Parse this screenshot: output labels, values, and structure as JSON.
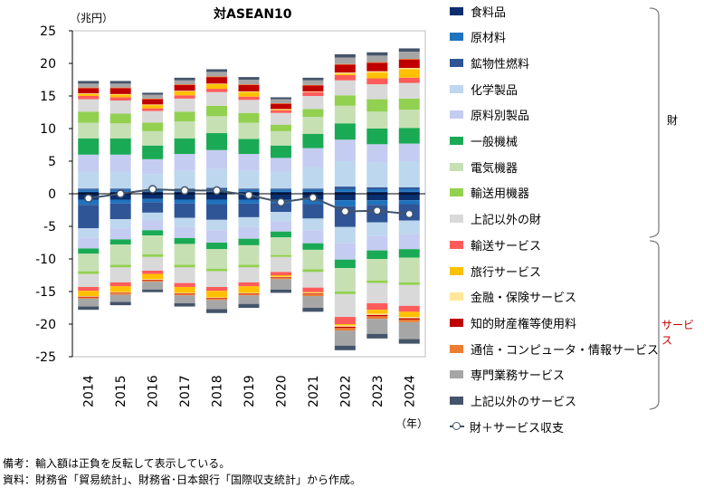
{
  "chart_data": {
    "type": "bar",
    "subtype": "stacked-bar-with-line",
    "title": "対ASEAN10",
    "ylabel_unit": "（兆円）",
    "xlabel_unit": "（年）",
    "ylim": [
      -25,
      25
    ],
    "yticks": [
      25,
      20,
      15,
      10,
      5,
      0,
      -5,
      -10,
      -15,
      -20,
      -25
    ],
    "categories": [
      "2014",
      "2015",
      "2016",
      "2017",
      "2018",
      "2019",
      "2020",
      "2021",
      "2022",
      "2023",
      "2024"
    ],
    "goods_series": [
      {
        "name": "食料品",
        "color": "#0B2E6E",
        "exports": [
          0.3,
          0.3,
          0.3,
          0.3,
          0.3,
          0.3,
          0.3,
          0.3,
          0.3,
          0.3,
          0.3
        ],
        "imports": [
          -0.9,
          -0.9,
          -0.8,
          -0.9,
          -0.9,
          -0.9,
          -0.9,
          -0.9,
          -1.0,
          -1.0,
          -1.0
        ]
      },
      {
        "name": "原材料",
        "color": "#1E73BE",
        "exports": [
          0.3,
          0.3,
          0.2,
          0.3,
          0.3,
          0.3,
          0.3,
          0.3,
          0.4,
          0.4,
          0.4
        ],
        "imports": [
          -0.8,
          -0.6,
          -0.5,
          -0.6,
          -0.7,
          -0.6,
          -0.5,
          -0.7,
          -0.9,
          -0.7,
          -0.6
        ]
      },
      {
        "name": "鉱物性燃料",
        "color": "#2F5597",
        "exports": [
          0.2,
          0.2,
          0.1,
          0.2,
          0.3,
          0.2,
          0.2,
          0.2,
          0.4,
          0.3,
          0.3
        ],
        "imports": [
          -3.6,
          -2.4,
          -1.6,
          -2.2,
          -2.4,
          -2.1,
          -1.4,
          -2.2,
          -3.2,
          -2.7,
          -2.5
        ]
      },
      {
        "name": "化学製品",
        "color": "#BDD7EE",
        "exports": [
          2.6,
          2.6,
          2.4,
          2.7,
          2.9,
          2.7,
          2.6,
          3.3,
          3.9,
          3.8,
          4.0
        ],
        "imports": [
          -1.4,
          -1.4,
          -1.2,
          -1.4,
          -1.6,
          -1.5,
          -1.4,
          -1.8,
          -2.5,
          -2.1,
          -2.1
        ]
      },
      {
        "name": "原料別製品",
        "color": "#C5CCF2",
        "exports": [
          2.6,
          2.6,
          2.3,
          2.6,
          2.9,
          2.6,
          2.1,
          2.9,
          3.3,
          2.8,
          2.7
        ],
        "imports": [
          -1.7,
          -1.7,
          -1.5,
          -1.7,
          -1.9,
          -1.8,
          -1.6,
          -2.0,
          -2.5,
          -2.2,
          -2.3
        ]
      },
      {
        "name": "一般機械",
        "color": "#1AAA55",
        "exports": [
          2.5,
          2.5,
          2.1,
          2.4,
          2.6,
          2.3,
          1.9,
          2.2,
          2.5,
          2.4,
          2.4
        ],
        "imports": [
          -0.8,
          -0.8,
          -0.8,
          -0.9,
          -1.0,
          -1.0,
          -0.9,
          -1.0,
          -1.3,
          -1.3,
          -1.3
        ]
      },
      {
        "name": "電気機器",
        "color": "#C6E0B4",
        "exports": [
          2.4,
          2.3,
          2.2,
          2.6,
          2.6,
          2.5,
          2.2,
          2.6,
          2.7,
          2.6,
          2.8
        ],
        "imports": [
          -2.7,
          -3.1,
          -2.9,
          -3.2,
          -3.0,
          -3.0,
          -2.7,
          -3.0,
          -3.6,
          -3.3,
          -3.8
        ]
      },
      {
        "name": "輸送用機器",
        "color": "#92D050",
        "exports": [
          1.7,
          1.5,
          1.3,
          1.5,
          1.6,
          1.5,
          1.0,
          1.2,
          1.6,
          1.9,
          1.7
        ],
        "imports": [
          -0.4,
          -0.4,
          -0.4,
          -0.4,
          -0.4,
          -0.4,
          -0.3,
          -0.4,
          -0.4,
          -0.4,
          -0.4
        ]
      },
      {
        "name": "上記以外の財",
        "color": "#D9D9D9",
        "exports": [
          1.9,
          2.0,
          1.8,
          2.0,
          2.1,
          2.0,
          1.8,
          2.0,
          2.3,
          2.3,
          2.4
        ],
        "imports": [
          -2.0,
          -2.3,
          -2.1,
          -2.4,
          -2.4,
          -2.3,
          -2.3,
          -2.4,
          -3.5,
          -3.1,
          -3.2
        ]
      }
    ],
    "services_series": [
      {
        "name": "輸送サービス",
        "color": "#FF5B5B",
        "exports": [
          0.5,
          0.5,
          0.4,
          0.5,
          0.5,
          0.5,
          0.4,
          0.6,
          0.8,
          0.9,
          0.8
        ],
        "imports": [
          -0.6,
          -0.6,
          -0.5,
          -0.6,
          -0.6,
          -0.6,
          -0.5,
          -0.7,
          -1.1,
          -1.0,
          -0.9
        ]
      },
      {
        "name": "旅行サービス",
        "color": "#FFC000",
        "exports": [
          0.3,
          0.4,
          0.5,
          0.6,
          0.7,
          0.7,
          0.1,
          0.0,
          0.2,
          0.9,
          1.3
        ],
        "imports": [
          -0.8,
          -0.9,
          -0.8,
          -0.9,
          -1.0,
          -1.0,
          -0.2,
          -0.1,
          -0.2,
          -0.6,
          -0.8
        ]
      },
      {
        "name": "金融・保険サービス",
        "color": "#FFE699",
        "exports": [
          0.1,
          0.1,
          0.1,
          0.1,
          0.1,
          0.1,
          0.1,
          0.1,
          0.2,
          0.2,
          0.2
        ],
        "imports": [
          -0.1,
          -0.1,
          -0.1,
          -0.1,
          -0.1,
          -0.1,
          -0.1,
          -0.1,
          -0.2,
          -0.2,
          -0.2
        ]
      },
      {
        "name": "知的財産権等使用料",
        "color": "#C00000",
        "exports": [
          0.8,
          0.9,
          0.8,
          0.9,
          1.0,
          1.0,
          0.8,
          0.9,
          1.2,
          1.3,
          1.3
        ],
        "imports": [
          -0.1,
          -0.1,
          -0.1,
          -0.1,
          -0.1,
          -0.1,
          -0.1,
          -0.1,
          -0.2,
          -0.2,
          -0.2
        ]
      },
      {
        "name": "通信・コンピュータ・情報サービス",
        "color": "#ED7D31",
        "exports": [
          0.1,
          0.1,
          0.1,
          0.1,
          0.1,
          0.1,
          0.1,
          0.1,
          0.1,
          0.1,
          0.1
        ],
        "imports": [
          -0.2,
          -0.2,
          -0.2,
          -0.2,
          -0.2,
          -0.2,
          -0.2,
          -0.3,
          -0.4,
          -0.4,
          -0.4
        ]
      },
      {
        "name": "専門業務サービス",
        "color": "#A6A6A6",
        "exports": [
          0.6,
          0.6,
          0.6,
          0.6,
          0.7,
          0.7,
          0.6,
          0.7,
          1.0,
          1.0,
          1.1
        ],
        "imports": [
          -1.2,
          -1.1,
          -1.2,
          -1.2,
          -1.4,
          -1.3,
          -1.6,
          -1.8,
          -2.3,
          -2.3,
          -2.6
        ]
      },
      {
        "name": "上記以外のサービス",
        "color": "#44546A",
        "exports": [
          0.4,
          0.4,
          0.3,
          0.4,
          0.4,
          0.4,
          0.3,
          0.4,
          0.5,
          0.5,
          0.5
        ],
        "imports": [
          -0.5,
          -0.5,
          -0.4,
          -0.5,
          -0.6,
          -0.6,
          -0.5,
          -0.6,
          -0.7,
          -0.7,
          -0.7
        ]
      }
    ],
    "balance_line": {
      "name": "財＋サービス収支",
      "color": "#44546A",
      "values": [
        -0.7,
        0.0,
        0.7,
        0.5,
        0.5,
        -0.2,
        -1.3,
        -0.6,
        -2.7,
        -2.6,
        -3.1
      ]
    },
    "grid": false
  },
  "legend": {
    "goods_group_label": "財",
    "services_group_label": "サービス",
    "services_group_label_color": "#C00000"
  },
  "notes": {
    "note1": "備考：輸入額は正負を反転して表示している。",
    "note2": "資料：財務省「貿易統計」、財務省･日本銀行「国際収支統計」から作成。"
  }
}
